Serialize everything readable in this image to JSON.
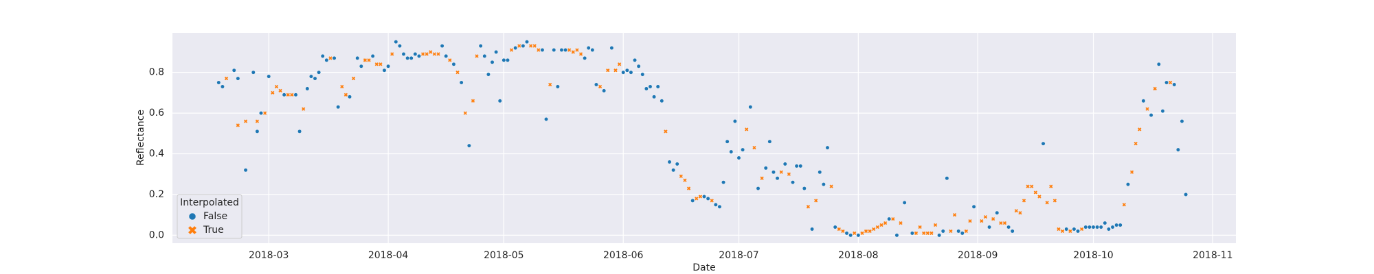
{
  "chart_data": {
    "type": "scatter",
    "xlabel": "Date",
    "ylabel": "Reflectance",
    "legend_title": "Interpolated",
    "legend": "lower left",
    "grid": true,
    "xlim": [
      "2018-02-04",
      "2018-11-07"
    ],
    "ylim": [
      -0.039,
      0.994
    ],
    "xticks": [
      {
        "value": "2018-03-01",
        "label": "2018-03"
      },
      {
        "value": "2018-04-01",
        "label": "2018-04"
      },
      {
        "value": "2018-05-01",
        "label": "2018-05"
      },
      {
        "value": "2018-06-01",
        "label": "2018-06"
      },
      {
        "value": "2018-07-01",
        "label": "2018-07"
      },
      {
        "value": "2018-08-01",
        "label": "2018-08"
      },
      {
        "value": "2018-09-01",
        "label": "2018-09"
      },
      {
        "value": "2018-10-01",
        "label": "2018-10"
      },
      {
        "value": "2018-11-01",
        "label": "2018-11"
      }
    ],
    "yticks": [
      {
        "value": 0,
        "label": "0.0"
      },
      0.2,
      0.4,
      0.6,
      0.8
    ],
    "series": [
      {
        "name": "False",
        "color": "#1f77b4",
        "marker": "o",
        "x": [
          "2018-02-16",
          "2018-02-17",
          "2018-02-20",
          "2018-02-21",
          "2018-02-23",
          "2018-02-25",
          "2018-02-26",
          "2018-02-27",
          "2018-03-01",
          "2018-03-05",
          "2018-03-08",
          "2018-03-09",
          "2018-03-11",
          "2018-03-12",
          "2018-03-13",
          "2018-03-14",
          "2018-03-15",
          "2018-03-16",
          "2018-03-18",
          "2018-03-19",
          "2018-03-22",
          "2018-03-24",
          "2018-03-25",
          "2018-03-28",
          "2018-03-31",
          "2018-04-01",
          "2018-04-03",
          "2018-04-04",
          "2018-04-05",
          "2018-04-06",
          "2018-04-07",
          "2018-04-08",
          "2018-04-09",
          "2018-04-15",
          "2018-04-16",
          "2018-04-18",
          "2018-04-20",
          "2018-04-22",
          "2018-04-25",
          "2018-04-26",
          "2018-04-27",
          "2018-04-28",
          "2018-04-29",
          "2018-04-30",
          "2018-05-01",
          "2018-05-02",
          "2018-05-04",
          "2018-05-06",
          "2018-05-07",
          "2018-05-11",
          "2018-05-12",
          "2018-05-14",
          "2018-05-15",
          "2018-05-16",
          "2018-05-17",
          "2018-05-22",
          "2018-05-23",
          "2018-05-24",
          "2018-05-25",
          "2018-05-27",
          "2018-05-29",
          "2018-06-01",
          "2018-06-02",
          "2018-06-03",
          "2018-06-04",
          "2018-06-05",
          "2018-06-06",
          "2018-06-07",
          "2018-06-08",
          "2018-06-09",
          "2018-06-10",
          "2018-06-11",
          "2018-06-13",
          "2018-06-14",
          "2018-06-15",
          "2018-06-19",
          "2018-06-22",
          "2018-06-23",
          "2018-06-25",
          "2018-06-26",
          "2018-06-27",
          "2018-06-28",
          "2018-06-29",
          "2018-06-30",
          "2018-07-01",
          "2018-07-02",
          "2018-07-04",
          "2018-07-06",
          "2018-07-08",
          "2018-07-09",
          "2018-07-10",
          "2018-07-11",
          "2018-07-13",
          "2018-07-15",
          "2018-07-16",
          "2018-07-17",
          "2018-07-18",
          "2018-07-20",
          "2018-07-22",
          "2018-07-23",
          "2018-07-24",
          "2018-07-26",
          "2018-07-29",
          "2018-07-30",
          "2018-08-01",
          "2018-08-09",
          "2018-08-11",
          "2018-08-13",
          "2018-08-15",
          "2018-08-22",
          "2018-08-23",
          "2018-08-24",
          "2018-08-27",
          "2018-08-28",
          "2018-08-31",
          "2018-09-04",
          "2018-09-06",
          "2018-09-09",
          "2018-09-10",
          "2018-09-18",
          "2018-09-24",
          "2018-09-26",
          "2018-09-27",
          "2018-09-29",
          "2018-09-30",
          "2018-10-01",
          "2018-10-02",
          "2018-10-03",
          "2018-10-04",
          "2018-10-05",
          "2018-10-06",
          "2018-10-07",
          "2018-10-08",
          "2018-10-10",
          "2018-10-14",
          "2018-10-16",
          "2018-10-18",
          "2018-10-19",
          "2018-10-20",
          "2018-10-22",
          "2018-10-23",
          "2018-10-24",
          "2018-10-25"
        ],
        "values": [
          0.75,
          0.73,
          0.81,
          0.77,
          0.32,
          0.8,
          0.51,
          0.6,
          0.78,
          0.69,
          0.69,
          0.51,
          0.72,
          0.78,
          0.77,
          0.8,
          0.88,
          0.86,
          0.87,
          0.63,
          0.68,
          0.87,
          0.83,
          0.88,
          0.81,
          0.83,
          0.95,
          0.93,
          0.89,
          0.87,
          0.87,
          0.89,
          0.88,
          0.93,
          0.88,
          0.84,
          0.75,
          0.44,
          0.93,
          0.88,
          0.79,
          0.85,
          0.9,
          0.66,
          0.86,
          0.86,
          0.92,
          0.93,
          0.95,
          0.91,
          0.57,
          0.91,
          0.73,
          0.91,
          0.91,
          0.87,
          0.92,
          0.91,
          0.74,
          0.71,
          0.92,
          0.8,
          0.81,
          0.8,
          0.86,
          0.83,
          0.79,
          0.72,
          0.73,
          0.68,
          0.73,
          0.66,
          0.36,
          0.32,
          0.35,
          0.17,
          0.19,
          0.18,
          0.15,
          0.14,
          0.26,
          0.46,
          0.41,
          0.56,
          0.38,
          0.42,
          0.63,
          0.23,
          0.33,
          0.46,
          0.31,
          0.28,
          0.35,
          0.26,
          0.34,
          0.34,
          0.23,
          0.03,
          0.31,
          0.25,
          0.43,
          0.04,
          0.01,
          0,
          0,
          0.08,
          0,
          0.16,
          0.01,
          0,
          0.02,
          0.28,
          0.02,
          0.01,
          0.14,
          0.04,
          0.11,
          0.04,
          0.02,
          0.45,
          0.03,
          0.03,
          0.02,
          0.04,
          0.04,
          0.04,
          0.04,
          0.04,
          0.06,
          0.03,
          0.04,
          0.05,
          0.05,
          0.25,
          0.66,
          0.59,
          0.84,
          0.61,
          0.75,
          0.74,
          0.42,
          0.56,
          0.2
        ]
      },
      {
        "name": "True",
        "color": "#ff7f0e",
        "marker": "x",
        "x": [
          "2018-02-18",
          "2018-02-21",
          "2018-02-23",
          "2018-02-26",
          "2018-02-28",
          "2018-03-02",
          "2018-03-03",
          "2018-03-04",
          "2018-03-06",
          "2018-03-07",
          "2018-03-10",
          "2018-03-17",
          "2018-03-20",
          "2018-03-21",
          "2018-03-23",
          "2018-03-26",
          "2018-03-27",
          "2018-03-29",
          "2018-03-30",
          "2018-04-02",
          "2018-04-10",
          "2018-04-11",
          "2018-04-12",
          "2018-04-13",
          "2018-04-14",
          "2018-04-17",
          "2018-04-19",
          "2018-04-21",
          "2018-04-23",
          "2018-04-24",
          "2018-05-03",
          "2018-05-05",
          "2018-05-08",
          "2018-05-09",
          "2018-05-10",
          "2018-05-13",
          "2018-05-18",
          "2018-05-19",
          "2018-05-20",
          "2018-05-21",
          "2018-05-26",
          "2018-05-28",
          "2018-05-30",
          "2018-05-31",
          "2018-06-12",
          "2018-06-16",
          "2018-06-17",
          "2018-06-18",
          "2018-06-20",
          "2018-06-21",
          "2018-06-24",
          "2018-07-03",
          "2018-07-05",
          "2018-07-07",
          "2018-07-12",
          "2018-07-14",
          "2018-07-19",
          "2018-07-21",
          "2018-07-25",
          "2018-07-27",
          "2018-07-28",
          "2018-07-31",
          "2018-08-02",
          "2018-08-03",
          "2018-08-04",
          "2018-08-05",
          "2018-08-06",
          "2018-08-07",
          "2018-08-08",
          "2018-08-10",
          "2018-08-12",
          "2018-08-16",
          "2018-08-17",
          "2018-08-18",
          "2018-08-19",
          "2018-08-20",
          "2018-08-21",
          "2018-08-25",
          "2018-08-26",
          "2018-08-29",
          "2018-08-30",
          "2018-09-02",
          "2018-09-03",
          "2018-09-05",
          "2018-09-07",
          "2018-09-08",
          "2018-09-11",
          "2018-09-12",
          "2018-09-13",
          "2018-09-14",
          "2018-09-15",
          "2018-09-16",
          "2018-09-17",
          "2018-09-19",
          "2018-09-20",
          "2018-09-21",
          "2018-09-22",
          "2018-09-23",
          "2018-09-25",
          "2018-09-28",
          "2018-10-09",
          "2018-10-11",
          "2018-10-12",
          "2018-10-13",
          "2018-10-15",
          "2018-10-17",
          "2018-10-21"
        ],
        "values": [
          0.77,
          0.54,
          0.56,
          0.56,
          0.6,
          0.7,
          0.73,
          0.71,
          0.69,
          0.69,
          0.62,
          0.87,
          0.73,
          0.69,
          0.77,
          0.86,
          0.86,
          0.84,
          0.84,
          0.89,
          0.89,
          0.89,
          0.9,
          0.89,
          0.89,
          0.86,
          0.8,
          0.6,
          0.66,
          0.88,
          0.91,
          0.93,
          0.93,
          0.93,
          0.91,
          0.74,
          0.91,
          0.9,
          0.91,
          0.89,
          0.73,
          0.81,
          0.81,
          0.84,
          0.51,
          0.29,
          0.27,
          0.23,
          0.18,
          0.19,
          0.17,
          0.52,
          0.43,
          0.28,
          0.31,
          0.3,
          0.14,
          0.17,
          0.24,
          0.03,
          0.02,
          0.01,
          0.01,
          0.02,
          0.02,
          0.03,
          0.04,
          0.05,
          0.06,
          0.08,
          0.06,
          0.01,
          0.04,
          0.01,
          0.01,
          0.01,
          0.05,
          0.02,
          0.1,
          0.02,
          0.07,
          0.07,
          0.09,
          0.08,
          0.06,
          0.06,
          0.12,
          0.11,
          0.17,
          0.24,
          0.24,
          0.21,
          0.19,
          0.16,
          0.24,
          0.17,
          0.03,
          0.02,
          0.02,
          0.03,
          0.15,
          0.31,
          0.45,
          0.52,
          0.62,
          0.72,
          0.75
        ]
      }
    ]
  }
}
